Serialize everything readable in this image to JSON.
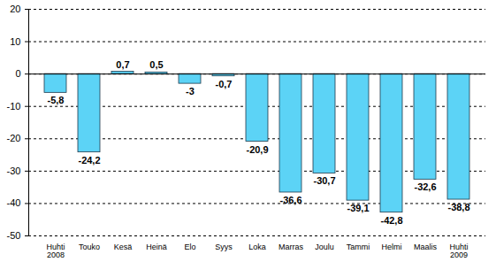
{
  "chart_data": {
    "type": "bar",
    "categories": [
      "Huhti\n2008",
      "Touko",
      "Kesä",
      "Heinä",
      "Elo",
      "Syys",
      "Loka",
      "Marras",
      "Joulu",
      "Tammi",
      "Helmi",
      "Maalis",
      "Huhti\n2009"
    ],
    "values": [
      -5.8,
      -24.2,
      0.7,
      0.5,
      -3,
      -0.7,
      -20.9,
      -36.6,
      -30.7,
      -39.1,
      -42.8,
      -32.6,
      -38.8
    ],
    "value_labels": [
      "-5,8",
      "-24,2",
      "0,7",
      "0,5",
      "-3",
      "-0,7",
      "-20,9",
      "-36,6",
      "-30,7",
      "-39,1",
      "-42,8",
      "-32,6",
      "-38,8"
    ],
    "data_labels": true,
    "color": "#5cd3f6",
    "ylim": [
      -50,
      20
    ],
    "yticks": [
      -50,
      -40,
      -30,
      -20,
      -10,
      0,
      10,
      20
    ],
    "grid": true
  }
}
